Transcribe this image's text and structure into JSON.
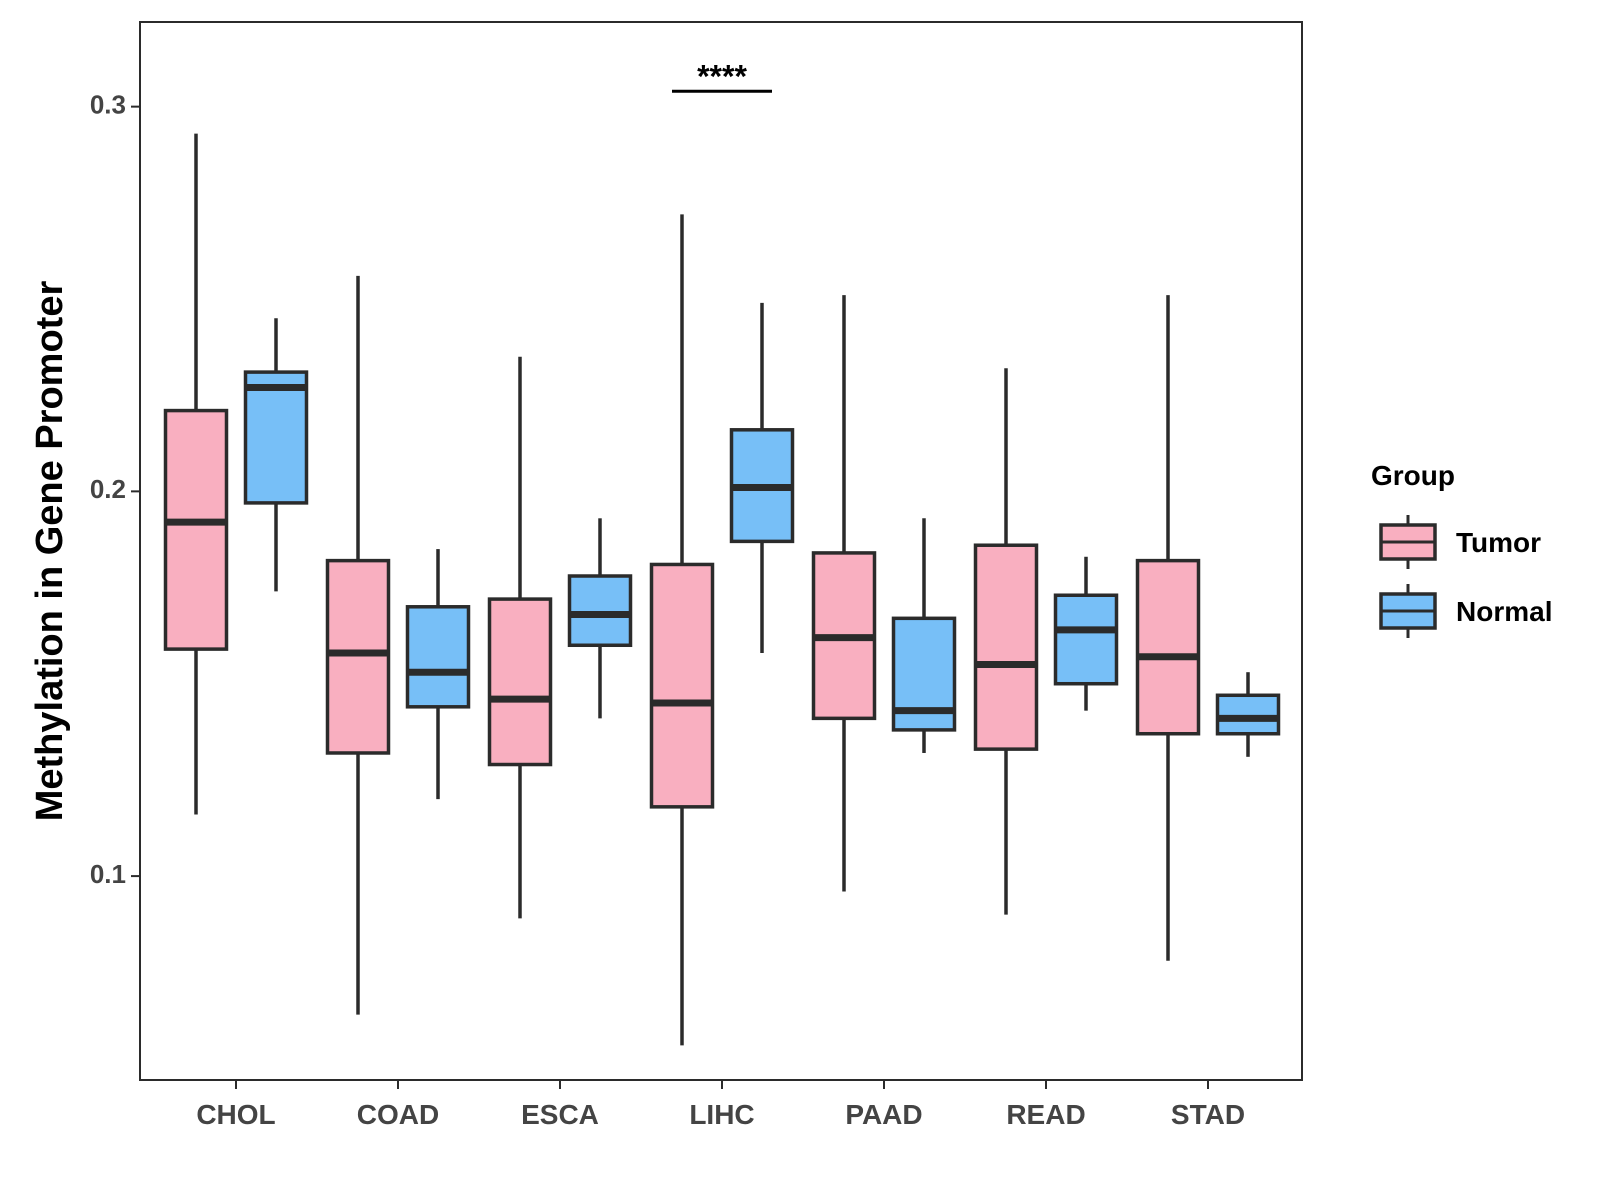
{
  "chart_data": {
    "type": "boxplot",
    "title": "",
    "xlabel": "",
    "ylabel": "Methylation in Gene Promoter",
    "ylim": [
      0.047,
      0.322
    ],
    "yticks": [
      {
        "value": 0.1,
        "label": "0.1"
      },
      {
        "value": 0.2,
        "label": "0.2"
      },
      {
        "value": 0.3,
        "label": "0.3"
      }
    ],
    "categories": [
      "CHOL",
      "COAD",
      "ESCA",
      "LIHC",
      "PAAD",
      "READ",
      "STAD"
    ],
    "colors": {
      "Tumor": "#F9AFC0",
      "Normal": "#77BFF7",
      "stroke": "#2b2b2b"
    },
    "legend": {
      "title": "Group",
      "position": "right"
    },
    "series": [
      {
        "name": "Tumor",
        "boxes": [
          {
            "min": 0.116,
            "q1": 0.159,
            "median": 0.192,
            "q3": 0.221,
            "max": 0.293
          },
          {
            "min": 0.064,
            "q1": 0.132,
            "median": 0.158,
            "q3": 0.182,
            "max": 0.256
          },
          {
            "min": 0.089,
            "q1": 0.129,
            "median": 0.146,
            "q3": 0.172,
            "max": 0.235
          },
          {
            "min": 0.056,
            "q1": 0.118,
            "median": 0.145,
            "q3": 0.181,
            "max": 0.272
          },
          {
            "min": 0.096,
            "q1": 0.141,
            "median": 0.162,
            "q3": 0.184,
            "max": 0.251
          },
          {
            "min": 0.09,
            "q1": 0.133,
            "median": 0.155,
            "q3": 0.186,
            "max": 0.232
          },
          {
            "min": 0.078,
            "q1": 0.137,
            "median": 0.157,
            "q3": 0.182,
            "max": 0.251
          }
        ]
      },
      {
        "name": "Normal",
        "boxes": [
          {
            "min": 0.174,
            "q1": 0.197,
            "median": 0.227,
            "q3": 0.231,
            "max": 0.245
          },
          {
            "min": 0.12,
            "q1": 0.144,
            "median": 0.153,
            "q3": 0.17,
            "max": 0.185
          },
          {
            "min": 0.141,
            "q1": 0.16,
            "median": 0.168,
            "q3": 0.178,
            "max": 0.193
          },
          {
            "min": 0.158,
            "q1": 0.187,
            "median": 0.201,
            "q3": 0.216,
            "max": 0.249
          },
          {
            "min": 0.132,
            "q1": 0.138,
            "median": 0.143,
            "q3": 0.167,
            "max": 0.193
          },
          {
            "min": 0.143,
            "q1": 0.15,
            "median": 0.164,
            "q3": 0.173,
            "max": 0.183
          },
          {
            "min": 0.131,
            "q1": 0.137,
            "median": 0.141,
            "q3": 0.147,
            "max": 0.153
          }
        ]
      }
    ],
    "annotations": [
      {
        "category": "LIHC",
        "text": "****",
        "y": 0.304
      }
    ]
  }
}
